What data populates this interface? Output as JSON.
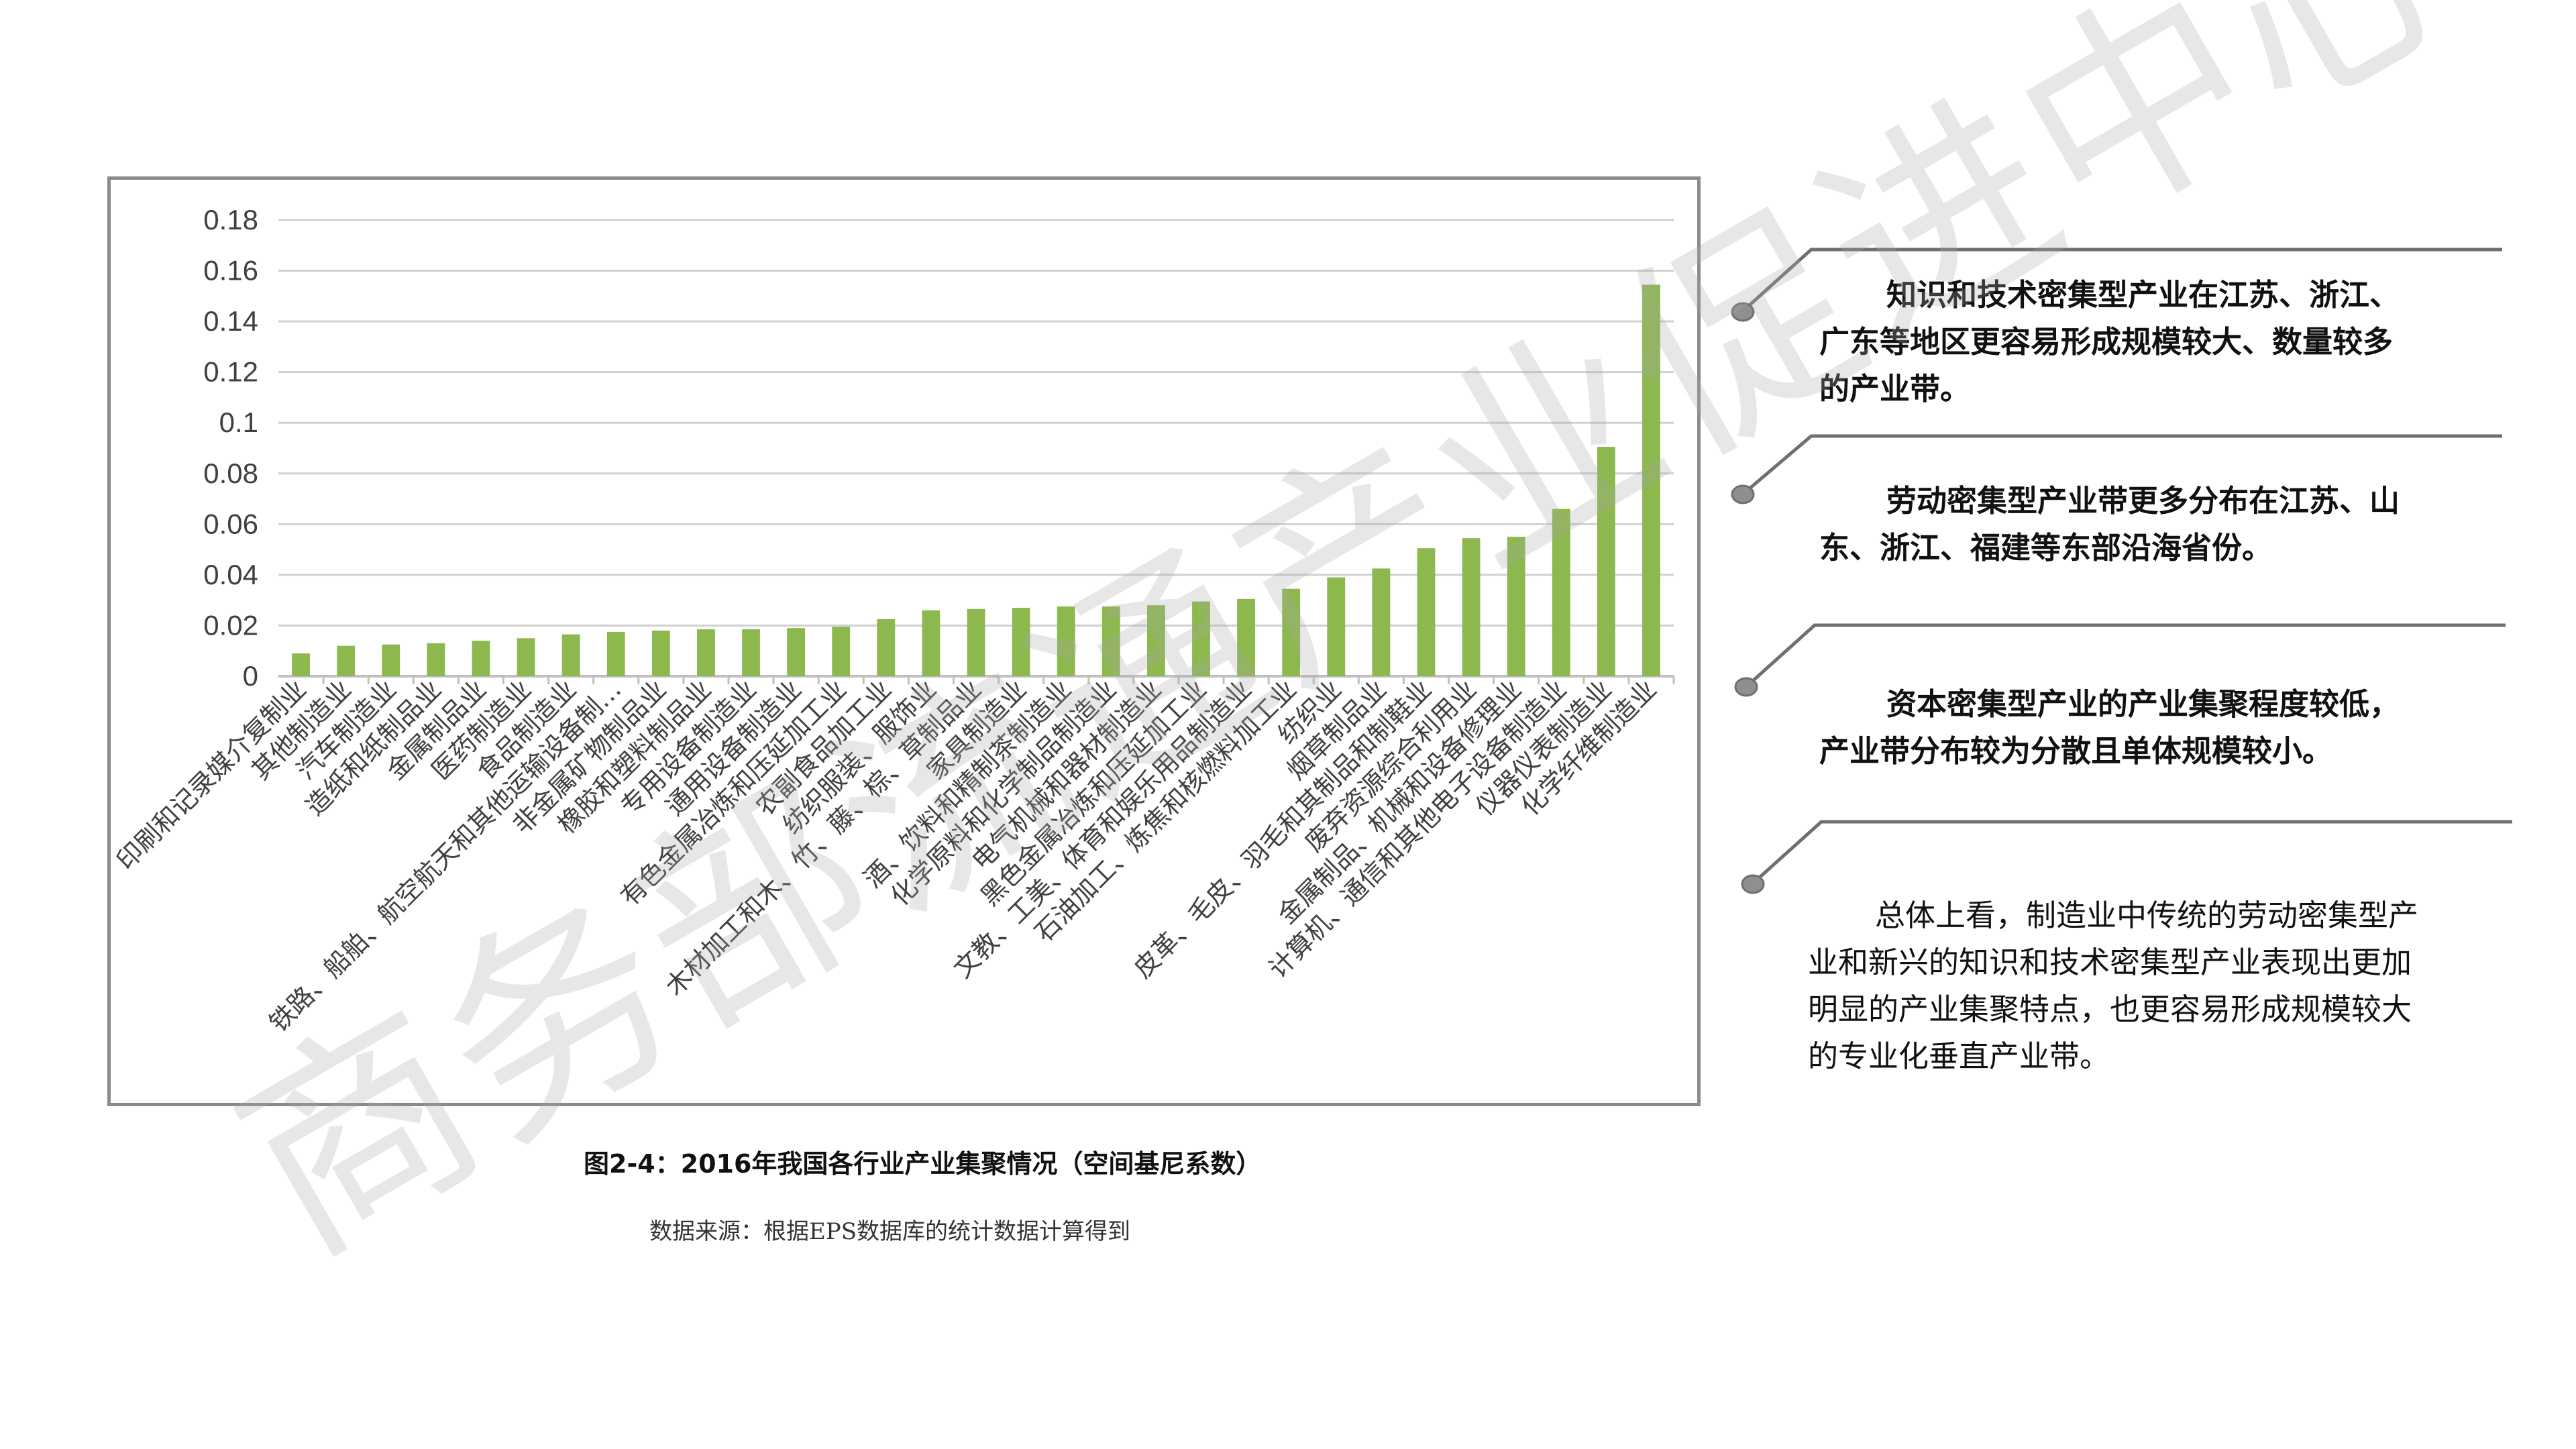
{
  "chart_data": {
    "type": "bar",
    "categories": [
      "印刷和记录媒介复制业",
      "其他制造业",
      "汽车制造业",
      "造纸和纸制品业",
      "金属制品业",
      "医药制造业",
      "食品制造业",
      "铁路、船舶、航空航天和其他运输设备制…",
      "非金属矿物制品业",
      "橡胶和塑料制品业",
      "专用设备制造业",
      "通用设备制造业",
      "有色金属冶炼和压延加工业",
      "农副食品加工业",
      "纺织服装、服饰业",
      "木材加工和木、竹、藤、棕、草制品业",
      "家具制造业",
      "酒、饮料和精制茶制造业",
      "化学原料和化学制品制造业",
      "电气机械和器材制造业",
      "黑色金属冶炼和压延加工业",
      "文教、工美、体育和娱乐用品制造业",
      "石油加工、炼焦和核燃料加工业",
      "纺织业",
      "烟草制品业",
      "皮革、毛皮、羽毛和其制品和制鞋业",
      "废弃资源综合利用业",
      "金属制品、机械和设备修理业",
      "计算机、通信和其他电子设备制造业",
      "仪器仪表制造业",
      "化学纤维制造业"
    ],
    "values": [
      0.009,
      0.012,
      0.0125,
      0.013,
      0.014,
      0.015,
      0.0165,
      0.0175,
      0.018,
      0.0185,
      0.0185,
      0.019,
      0.0195,
      0.0225,
      0.026,
      0.0265,
      0.027,
      0.0275,
      0.0275,
      0.028,
      0.0295,
      0.0305,
      0.0345,
      0.039,
      0.0425,
      0.0505,
      0.0545,
      0.055,
      0.066,
      0.0905,
      0.1545
    ],
    "ylim": [
      0,
      0.18
    ],
    "yticks": [
      "0",
      "0.02",
      "0.04",
      "0.06",
      "0.08",
      "0.1",
      "0.12",
      "0.14",
      "0.16",
      "0.18"
    ],
    "bar_color": "#8cb84e",
    "grid": true,
    "legend": "none"
  },
  "caption": "图2-4：2016年我国各行业产业集聚情况（空间基尼系数）",
  "source": "数据来源：根据EPS数据库的统计数据计算得到",
  "notes": {
    "note1": [
      "知识和技术密集型产业在江苏、浙江、",
      "广东等地区更容易形成规模较大、数量较多",
      "的产业带。"
    ],
    "note2": [
      "劳动密集型产业带更多分布在江苏、山",
      "东、浙江、福建等东部沿海省份。"
    ],
    "note3": [
      "资本密集型产业的产业集聚程度较低，",
      "产业带分布较为分散且单体规模较小。"
    ],
    "note4": [
      "总体上看，制造业中传统的劳动密集型产",
      "业和新兴的知识和技术密集型产业表现出更加",
      "明显的产业集聚特点，也更容易形成规模较大",
      "的专业化垂直产业带。"
    ]
  },
  "watermark": "商务部流通产业促进中心"
}
